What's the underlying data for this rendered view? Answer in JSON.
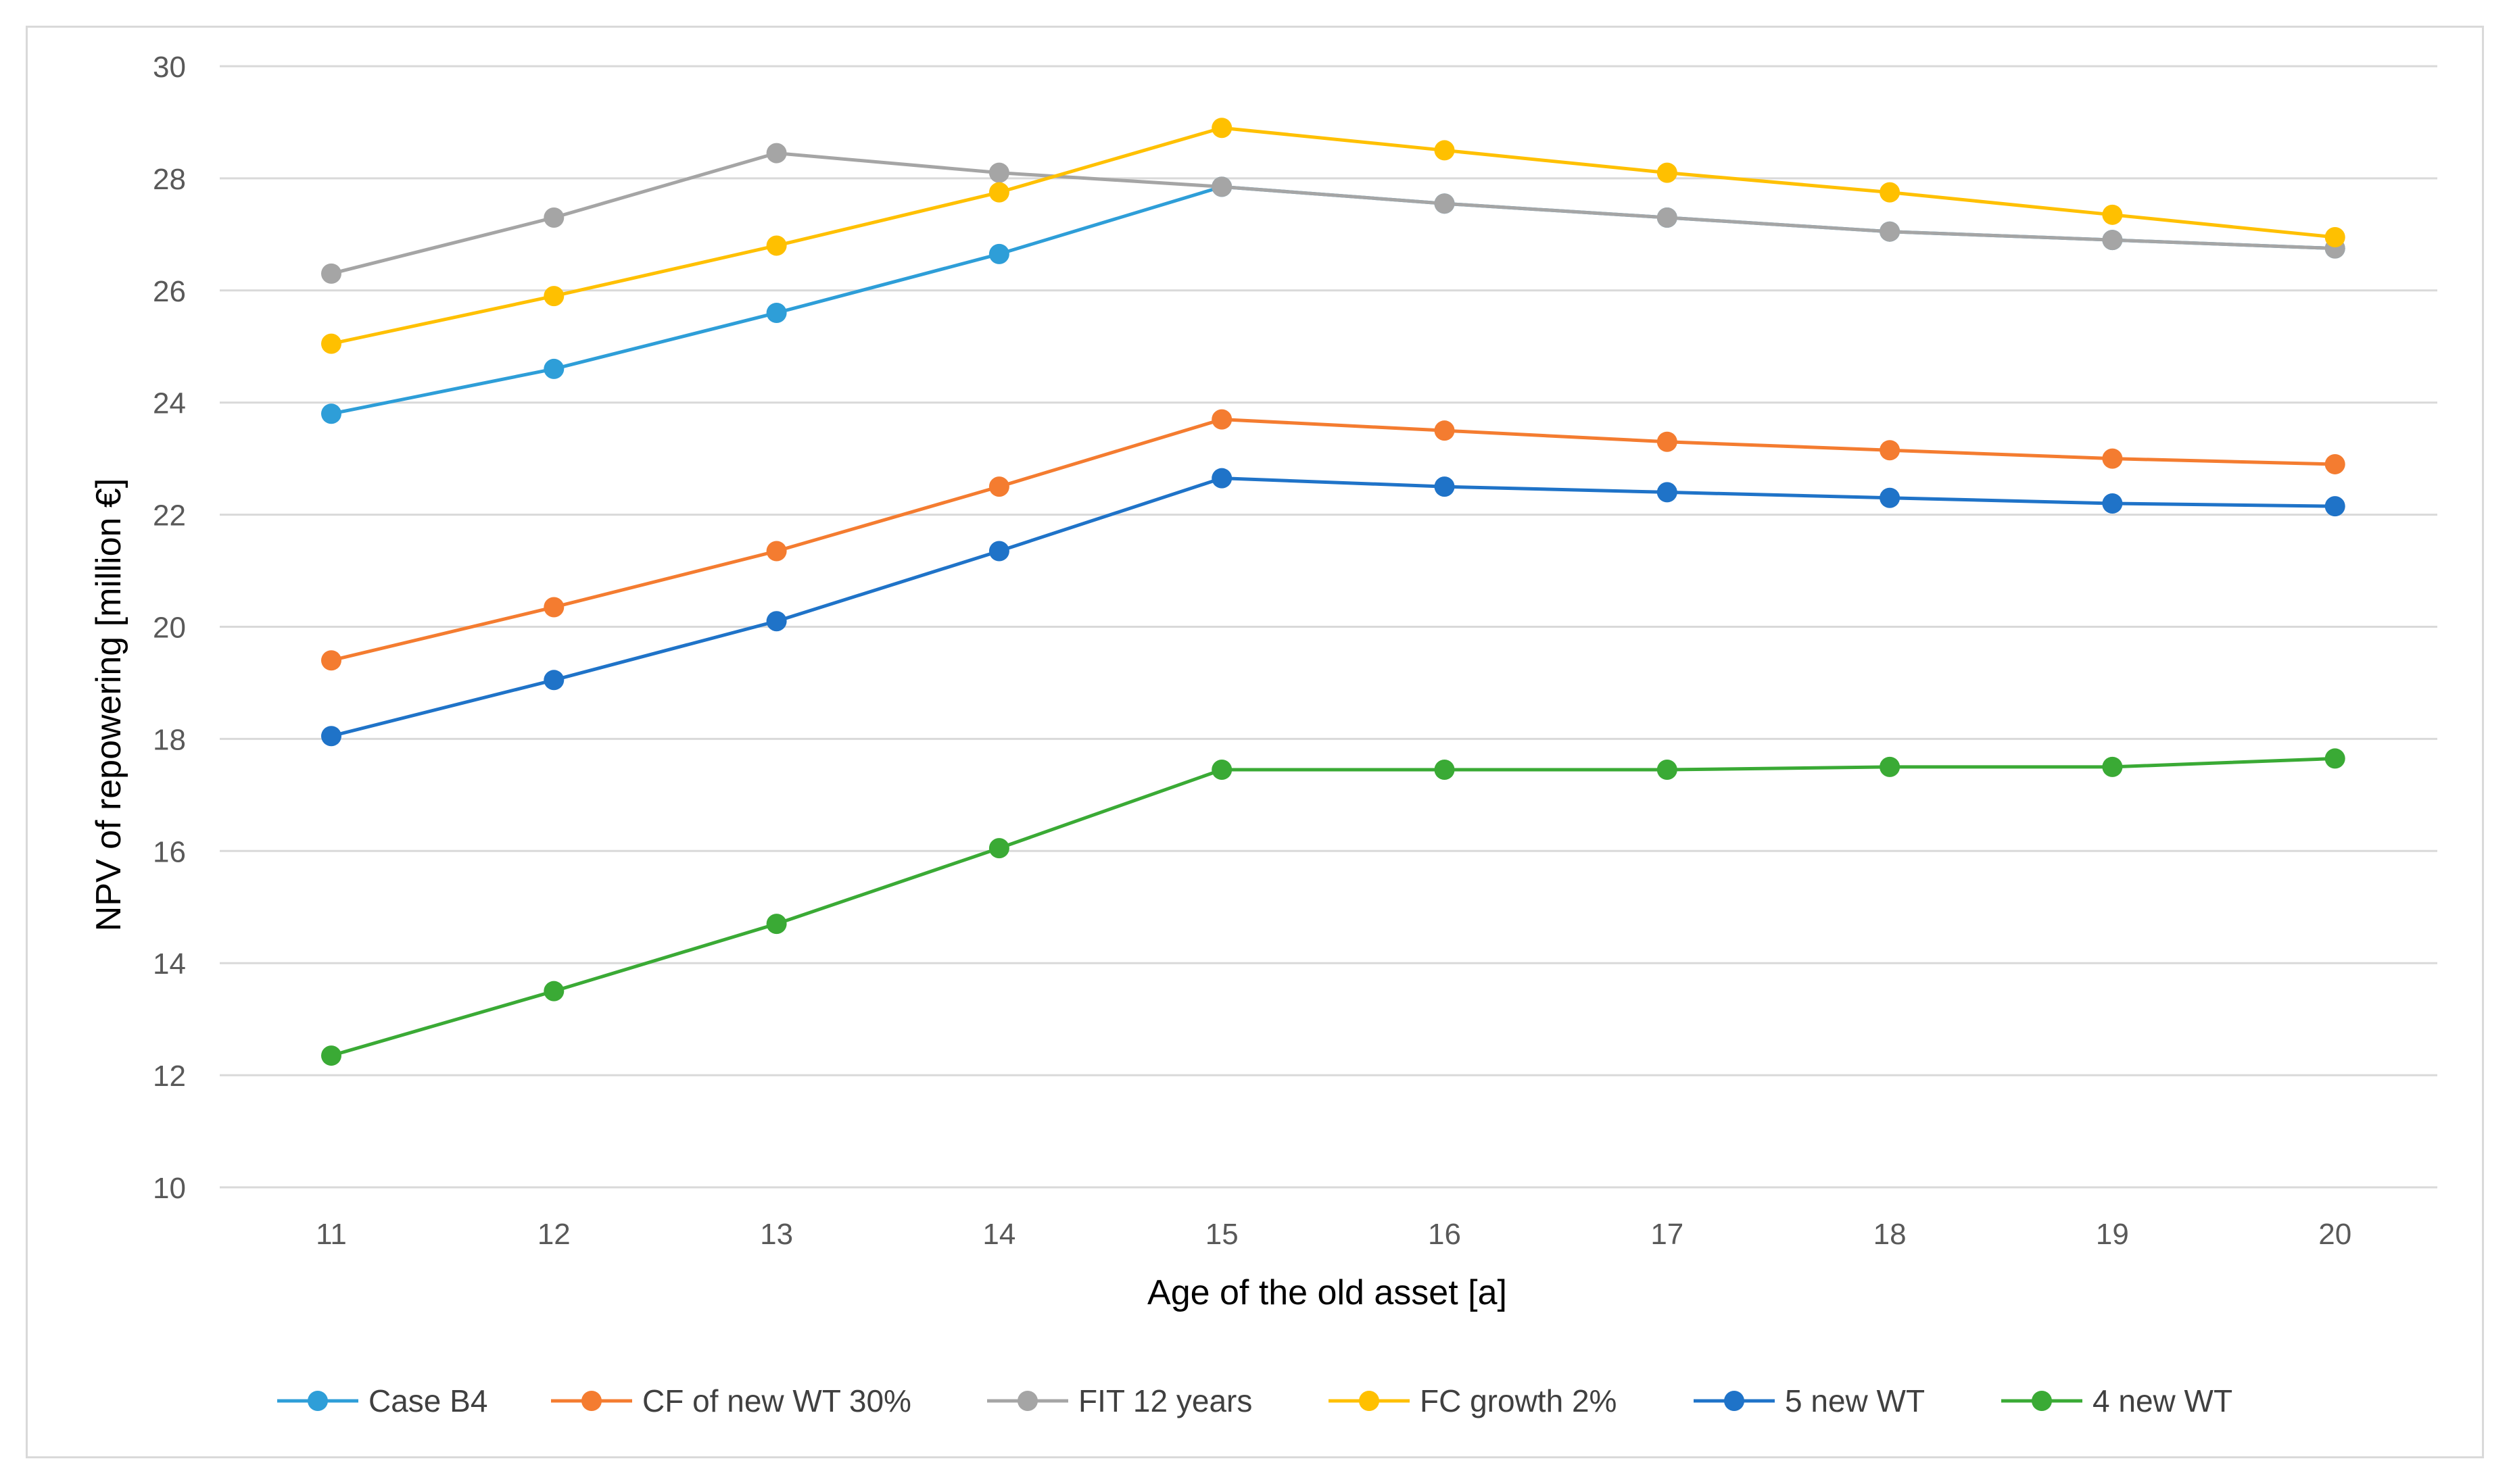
{
  "chart_data": {
    "type": "line",
    "title": "",
    "xlabel": "Age of the old asset [a]",
    "ylabel": "NPV of repowering [million €]",
    "x": [
      11,
      12,
      13,
      14,
      15,
      16,
      17,
      18,
      19,
      20
    ],
    "xtick_labels": [
      "11",
      "12",
      "13",
      "14",
      "15",
      "16",
      "17",
      "18",
      "19",
      "20"
    ],
    "ylim": [
      10,
      30
    ],
    "ytick_labels": [
      "10",
      "12",
      "14",
      "16",
      "18",
      "20",
      "22",
      "24",
      "26",
      "28",
      "30"
    ],
    "grid": true,
    "legend_position": "bottom",
    "series": [
      {
        "name": "Case B4",
        "color": "#2e9ed8",
        "values": [
          23.8,
          24.6,
          25.6,
          26.65,
          27.85,
          27.55,
          27.3,
          27.05,
          26.9,
          26.75
        ]
      },
      {
        "name": "CF of new WT 30%",
        "color": "#f47c30",
        "values": [
          19.4,
          20.35,
          21.35,
          22.5,
          23.7,
          23.5,
          23.3,
          23.15,
          23.0,
          22.9
        ]
      },
      {
        "name": "FIT 12 years",
        "color": "#a5a5a5",
        "values": [
          26.3,
          27.3,
          28.45,
          28.1,
          27.85,
          27.55,
          27.3,
          27.05,
          26.9,
          26.75
        ]
      },
      {
        "name": "FC growth 2%",
        "color": "#ffc000",
        "values": [
          25.05,
          25.9,
          26.8,
          27.75,
          28.9,
          28.5,
          28.1,
          27.75,
          27.35,
          26.95
        ]
      },
      {
        "name": "5 new WT",
        "color": "#1f73c8",
        "values": [
          18.05,
          19.05,
          20.1,
          21.35,
          22.65,
          22.5,
          22.4,
          22.3,
          22.2,
          22.15
        ]
      },
      {
        "name": "4 new WT",
        "color": "#3aaa35",
        "values": [
          12.35,
          13.5,
          14.7,
          16.05,
          17.45,
          17.45,
          17.45,
          17.5,
          17.5,
          17.65
        ]
      }
    ]
  }
}
